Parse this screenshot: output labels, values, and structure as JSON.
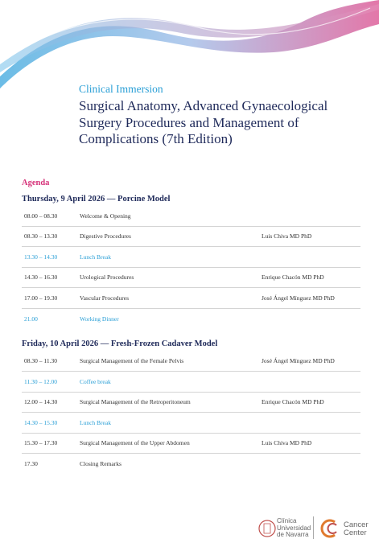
{
  "header": {
    "kicker": "Clinical Immersion",
    "title": "Surgical Anatomy, Advanced Gynaecological Surgery Procedures and Management of Complications (7th Edition)"
  },
  "agenda": {
    "label": "Agenda",
    "days": [
      {
        "heading": "Thursday, 9 April 2026 — Porcine Model",
        "rows": [
          {
            "time": "08.00 – 08.30",
            "activity": "Welcome & Opening"
          },
          {
            "time": "08.30 – 13.30",
            "activity": "Digestive Procedures",
            "speaker": "Luis Chiva MD PhD"
          },
          {
            "time": "13.30 – 14.30",
            "activity": "Lunch Break"
          },
          {
            "time": "14.30 – 16.30",
            "activity": "Urological Procedures",
            "speaker": "Enrique Chacón MD PhD"
          },
          {
            "time": "17.00 – 19.30",
            "activity": "Vascular Procedures",
            "speaker": "José Ángel Mínguez MD PhD"
          },
          {
            "time": "21.00",
            "activity": "Working Dinner"
          }
        ]
      },
      {
        "heading": "Friday, 10 April 2026 — Fresh-Frozen Cadaver Model",
        "rows": [
          {
            "time": "08.30 – 11.30",
            "activity": "Surgical Management of the Female Pelvis",
            "speaker": "José Ángel Mínguez MD PhD"
          },
          {
            "time": "11.30 – 12.00",
            "activity": "Coffee break"
          },
          {
            "time": "12.00 – 14.30",
            "activity": "Surgical Management of the Retroperitoneum",
            "speaker": "Enrique Chacón MD PhD"
          },
          {
            "time": "14.30 – 15.30",
            "activity": "Lunch Break"
          },
          {
            "time": "15.30 – 17.30",
            "activity": "Surgical Management of the Upper Abdomen",
            "speaker": "Luis Chiva MD PhD"
          },
          {
            "time": "17.30",
            "activity": "Closing Remarks"
          }
        ]
      }
    ]
  },
  "footer": {
    "clinic": [
      "Clínica",
      "Universidad",
      "de Navarra"
    ],
    "center": [
      "Cancer",
      "Center"
    ]
  }
}
